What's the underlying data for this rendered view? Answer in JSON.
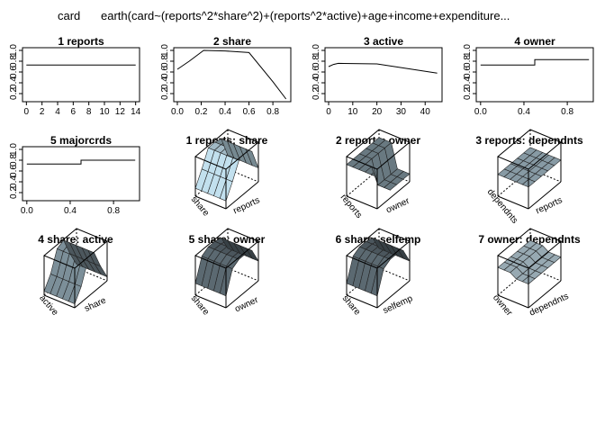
{
  "figure": {
    "title_left": "card",
    "title_right": "earth(card~(reports^2*share^2)+(reports^2*active)+age+income+expenditure..."
  },
  "chart_data": [
    {
      "type": "line",
      "title": "1  reports",
      "x": [
        0,
        14
      ],
      "y": [
        0.73,
        0.73
      ],
      "xticks": [
        0,
        2,
        4,
        6,
        8,
        10,
        12,
        14
      ],
      "xlim": [
        -0.5,
        14.5
      ],
      "yticks": [
        "0.2",
        "0.4",
        "0.6",
        "0.8",
        "1.0"
      ],
      "ylim": [
        0.05,
        1.05
      ]
    },
    {
      "type": "line",
      "title": "2  share",
      "x": [
        0,
        0.1,
        0.22,
        0.4,
        0.6,
        0.8,
        0.91
      ],
      "y": [
        0.65,
        0.8,
        1.0,
        0.99,
        0.96,
        0.42,
        0.1
      ],
      "xticks": [
        0.0,
        0.2,
        0.4,
        0.6,
        0.8
      ],
      "xlim": [
        -0.03,
        0.95
      ],
      "yticks": [
        "0.2",
        "0.4",
        "0.6",
        "0.8",
        "1.0"
      ],
      "ylim": [
        0.05,
        1.05
      ]
    },
    {
      "type": "line",
      "title": "3  active",
      "x": [
        0,
        2,
        4,
        20,
        45
      ],
      "y": [
        0.7,
        0.74,
        0.76,
        0.75,
        0.58
      ],
      "xticks": [
        0,
        10,
        20,
        30,
        40
      ],
      "xlim": [
        -1.5,
        47
      ],
      "yticks": [
        "0.2",
        "0.4",
        "0.6",
        "0.8",
        "1.0"
      ],
      "ylim": [
        0.05,
        1.05
      ]
    },
    {
      "type": "line",
      "title": "4  owner",
      "x": [
        0,
        0.5,
        0.5,
        1
      ],
      "y": [
        0.73,
        0.73,
        0.83,
        0.83
      ],
      "step": true,
      "xticks": [
        0.0,
        0.4,
        0.8
      ],
      "xlim": [
        -0.04,
        1.04
      ],
      "yticks": [
        "0.2",
        "0.4",
        "0.6",
        "0.8",
        "1.0"
      ],
      "ylim": [
        0.05,
        1.05
      ]
    },
    {
      "type": "line",
      "title": "5  majorcrds",
      "x": [
        0,
        0.5,
        0.5,
        1
      ],
      "y": [
        0.73,
        0.73,
        0.8,
        0.8
      ],
      "step": true,
      "xticks": [
        0.0,
        0.4,
        0.8
      ],
      "xlim": [
        -0.04,
        1.04
      ],
      "yticks": [
        "0.2",
        "0.4",
        "0.6",
        "0.8",
        "1.0"
      ],
      "ylim": [
        0.05,
        1.05
      ]
    },
    {
      "type": "surface",
      "title": "1 reports: share",
      "xlabel": "share",
      "ylabel": "reports",
      "color": "#a9c3cf",
      "z": [
        [
          0.2,
          0.55,
          0.95,
          0.96,
          0.9,
          0.35
        ],
        [
          0.2,
          0.55,
          0.95,
          0.96,
          0.9,
          0.35
        ],
        [
          0.2,
          0.55,
          0.95,
          0.96,
          0.9,
          0.35
        ],
        [
          0.2,
          0.55,
          0.95,
          0.96,
          0.9,
          0.35
        ],
        [
          0.2,
          0.55,
          0.95,
          0.96,
          0.9,
          0.35
        ],
        [
          0.2,
          0.55,
          0.95,
          0.96,
          0.9,
          0.35
        ]
      ]
    },
    {
      "type": "surface",
      "title": "2 reports: owner",
      "xlabel": "reports",
      "ylabel": "owner",
      "color": "#6f7f88",
      "z": [
        [
          0.8,
          0.8,
          0.8,
          0.8,
          0.8,
          0.8
        ],
        [
          0.8,
          0.8,
          0.8,
          0.8,
          0.8,
          0.8
        ],
        [
          0.8,
          0.8,
          0.8,
          0.8,
          0.8,
          0.8
        ],
        [
          0.8,
          0.8,
          0.2,
          0.2,
          0.2,
          0.2
        ],
        [
          0.8,
          0.8,
          0.2,
          0.2,
          0.2,
          0.2
        ],
        [
          0.8,
          0.8,
          0.2,
          0.2,
          0.2,
          0.2
        ]
      ]
    },
    {
      "type": "surface",
      "title": "3 reports: dependnts",
      "xlabel": "dependnts",
      "ylabel": "reports",
      "color": "#8ea2ad",
      "z": [
        [
          0.55,
          0.55,
          0.55,
          0.55,
          0.55,
          0.55
        ],
        [
          0.55,
          0.55,
          0.55,
          0.55,
          0.55,
          0.55
        ],
        [
          0.55,
          0.55,
          0.55,
          0.55,
          0.55,
          0.55
        ],
        [
          0.55,
          0.55,
          0.55,
          0.55,
          0.55,
          0.55
        ],
        [
          0.55,
          0.55,
          0.55,
          0.55,
          0.55,
          0.55
        ],
        [
          0.55,
          0.55,
          0.55,
          0.55,
          0.55,
          0.55
        ]
      ]
    },
    {
      "type": "surface",
      "title": "4 share: active",
      "xlabel": "active",
      "ylabel": "share",
      "color": "#6c7c85",
      "z": [
        [
          0.1,
          0.4,
          0.9,
          0.98,
          0.5,
          0.1
        ],
        [
          0.1,
          0.4,
          0.9,
          0.98,
          0.5,
          0.1
        ],
        [
          0.1,
          0.4,
          0.9,
          0.98,
          0.5,
          0.1
        ],
        [
          0.1,
          0.4,
          0.9,
          0.98,
          0.5,
          0.1
        ],
        [
          0.1,
          0.4,
          0.9,
          0.98,
          0.5,
          0.1
        ],
        [
          0.1,
          0.4,
          0.9,
          0.98,
          0.5,
          0.1
        ]
      ]
    },
    {
      "type": "surface",
      "title": "5 share: owner",
      "xlabel": "share",
      "ylabel": "owner",
      "color": "#4f5b62",
      "z": [
        [
          0.3,
          0.85,
          0.95,
          0.95,
          0.9,
          0.5
        ],
        [
          0.3,
          0.85,
          0.95,
          0.95,
          0.9,
          0.5
        ],
        [
          0.3,
          0.85,
          0.95,
          0.95,
          0.9,
          0.5
        ],
        [
          0.3,
          0.85,
          0.95,
          0.95,
          0.9,
          0.5
        ],
        [
          0.3,
          0.85,
          0.95,
          0.95,
          0.9,
          0.5
        ],
        [
          0.3,
          0.85,
          0.95,
          0.95,
          0.9,
          0.5
        ]
      ]
    },
    {
      "type": "surface",
      "title": "6 share: selfemp",
      "xlabel": "share",
      "ylabel": "selfemp",
      "color": "#4f5b62",
      "z": [
        [
          0.3,
          0.85,
          0.95,
          0.95,
          0.9,
          0.5
        ],
        [
          0.3,
          0.85,
          0.95,
          0.95,
          0.9,
          0.5
        ],
        [
          0.3,
          0.85,
          0.95,
          0.95,
          0.9,
          0.5
        ],
        [
          0.3,
          0.85,
          0.95,
          0.95,
          0.9,
          0.5
        ],
        [
          0.3,
          0.85,
          0.95,
          0.95,
          0.9,
          0.5
        ],
        [
          0.3,
          0.85,
          0.95,
          0.95,
          0.9,
          0.5
        ]
      ]
    },
    {
      "type": "surface",
      "title": "7 owner: dependnts",
      "xlabel": "owner",
      "ylabel": "dependnts",
      "color": "#9fb2bb",
      "z": [
        [
          0.7,
          0.7,
          0.7,
          0.7,
          0.7,
          0.7
        ],
        [
          0.7,
          0.7,
          0.7,
          0.7,
          0.7,
          0.7
        ],
        [
          0.7,
          0.7,
          0.7,
          0.7,
          0.7,
          0.7
        ],
        [
          0.6,
          0.6,
          0.6,
          0.6,
          0.6,
          0.6
        ],
        [
          0.6,
          0.6,
          0.6,
          0.6,
          0.6,
          0.6
        ],
        [
          0.6,
          0.6,
          0.6,
          0.6,
          0.6,
          0.6
        ]
      ]
    }
  ]
}
